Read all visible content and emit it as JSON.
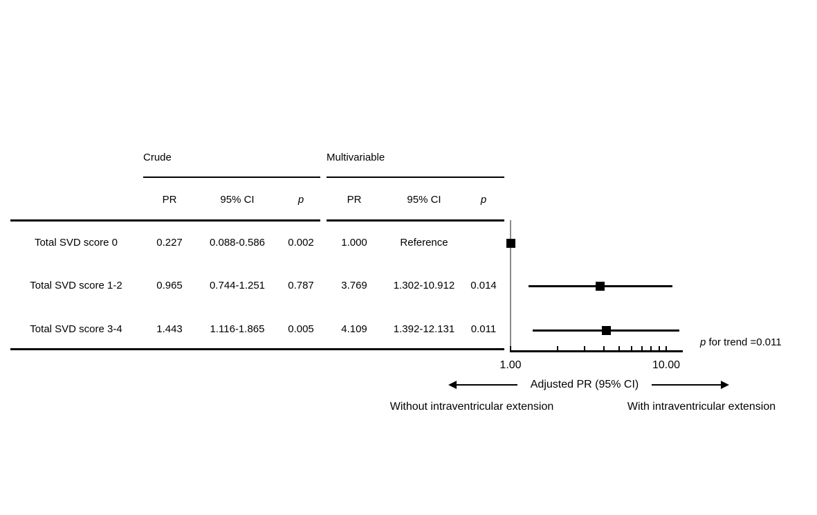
{
  "table": {
    "group_headers": {
      "crude": "Crude",
      "multivariable": "Multivariable"
    },
    "sub_headers": [
      "PR",
      "95% CI",
      "p",
      "PR",
      "95% CI",
      "p"
    ],
    "rows": [
      {
        "label": "Total SVD score 0",
        "crude_pr": "0.227",
        "crude_ci": "0.088-0.586",
        "crude_p": "0.002",
        "multi_pr": "1.000",
        "multi_ci": "Reference",
        "multi_p": ""
      },
      {
        "label": "Total SVD score 1-2",
        "crude_pr": "0.965",
        "crude_ci": "0.744-1.251",
        "crude_p": "0.787",
        "multi_pr": "3.769",
        "multi_ci": "1.302-10.912",
        "multi_p": "0.014"
      },
      {
        "label": "Total SVD score 3-4",
        "crude_pr": "1.443",
        "crude_ci": "1.116-1.865",
        "crude_p": "0.005",
        "multi_pr": "4.109",
        "multi_ci": "1.392-12.131",
        "multi_p": "0.011"
      }
    ]
  },
  "annotations": {
    "p_for_trend": {
      "p_italic": "p",
      "rest": " for trend =0.011"
    }
  },
  "chart_data": {
    "type": "scatter",
    "subtype": "forest-plot",
    "orientation": "horizontal",
    "x_scale": "log",
    "x_range": [
      1.0,
      12.5
    ],
    "x_ticks": [
      1,
      2,
      3,
      4,
      5,
      6,
      7,
      8,
      9,
      10
    ],
    "x_tick_labels": [
      {
        "value": 1,
        "label": "1.00"
      },
      {
        "value": 10,
        "label": "10.00"
      }
    ],
    "reference_line_x": 1.0,
    "xlabel": "Adjusted PR (95% CI)",
    "left_direction_label": "Without intraventricular extension",
    "right_direction_label": "With intraventricular extension",
    "categories": [
      "Total SVD score 0",
      "Total SVD score 1-2",
      "Total SVD score 3-4"
    ],
    "series": [
      {
        "name": "Adjusted PR (95% CI)",
        "values": [
          1.0,
          3.769,
          4.109
        ],
        "ci_low": [
          null,
          1.302,
          1.392
        ],
        "ci_high": [
          null,
          10.912,
          12.131
        ]
      }
    ],
    "p_for_trend": 0.011,
    "colors": {
      "marker": "#000000",
      "ci_line": "#000000",
      "reference_line": "#8a8a8a"
    },
    "legend": "none",
    "grid": false
  }
}
